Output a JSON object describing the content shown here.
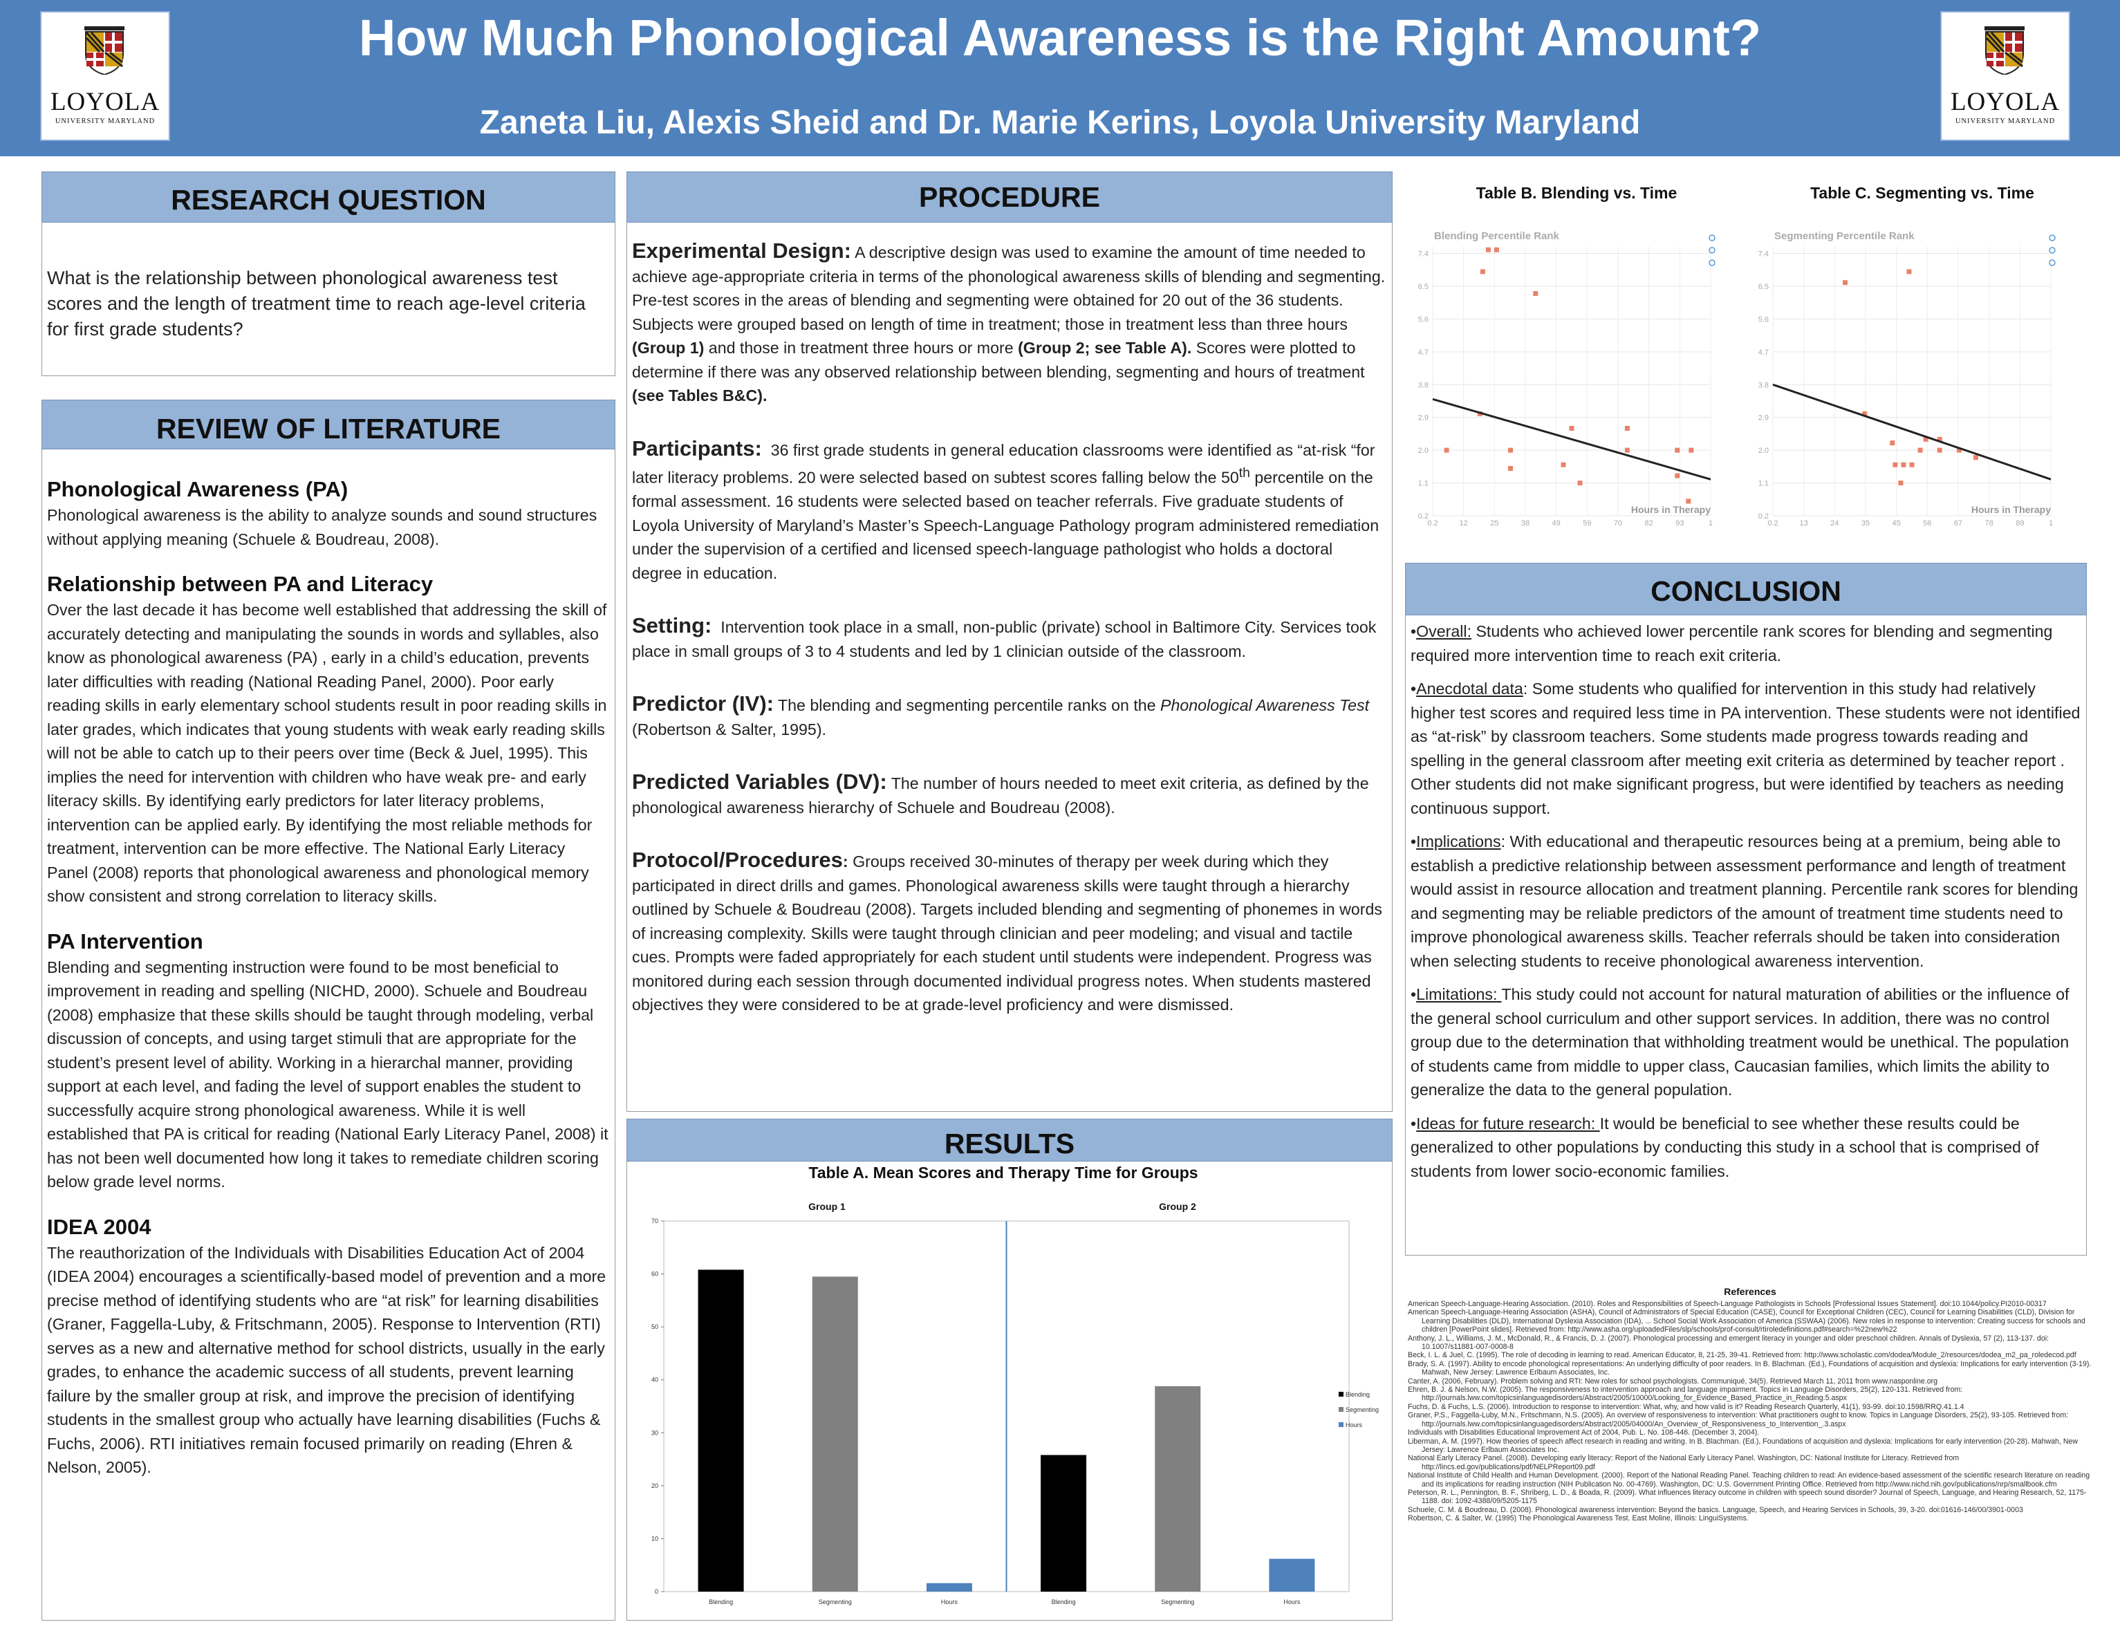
{
  "header": {
    "title": "How Much Phonological Awareness is the Right Amount?",
    "authors": "Zaneta Liu, Alexis Sheid and Dr. Marie Kerins, Loyola University Maryland",
    "logo_word": "LOYOLA",
    "logo_sub": "UNIVERSITY MARYLAND",
    "colors": {
      "header_bg": "#4f81bd",
      "section_bar": "#95b3d7"
    }
  },
  "research_question": {
    "heading": "RESEARCH QUESTION",
    "text": "What is the relationship between phonological awareness test scores and the length of treatment time to reach age-level criteria for first grade students?"
  },
  "literature": {
    "heading": "REVIEW OF LITERATURE",
    "sections": [
      {
        "title": "Phonological Awareness (PA)",
        "body": "Phonological awareness is the ability to analyze sounds and sound structures without applying meaning (Schuele & Boudreau, 2008)."
      },
      {
        "title": "Relationship between PA and Literacy",
        "body": "Over the last decade it has become well established that addressing the skill of accurately detecting and manipulating the sounds in words and syllables, also know as phonological awareness (PA) , early in a child’s education, prevents later difficulties with reading (National Reading Panel, 2000). Poor early reading skills in early elementary school students result in poor reading skills in later grades, which indicates that young students with weak early reading skills will not be able to catch up to their peers over time (Beck & Juel, 1995). This implies the need for intervention with children who have weak pre- and early literacy skills. By identifying early predictors for later literacy problems, intervention can be applied early. By identifying the most reliable methods for treatment, intervention can be more effective. The National Early Literacy Panel (2008) reports that phonological awareness and phonological memory show consistent and strong correlation to literacy skills."
      },
      {
        "title": "PA Intervention",
        "body": "Blending and segmenting instruction were found to be most beneficial to improvement in reading and spelling (NICHD, 2000). Schuele and Boudreau (2008) emphasize that these skills should be taught through modeling, verbal discussion of concepts, and using target stimuli that are appropriate for the student’s present level of ability. Working in a hierarchal manner, providing support at each level, and fading the level of support enables the student to successfully acquire strong phonological awareness. While it is well established that PA is critical for reading (National Early Literacy Panel, 2008) it has not been well documented how long it takes to remediate children scoring below grade level norms."
      },
      {
        "title": "IDEA 2004",
        "body": "The reauthorization of the Individuals with Disabilities Education Act of 2004 (IDEA 2004) encourages a scientifically-based model of prevention and a more precise method of identifying students who are “at risk” for learning disabilities (Graner, Faggella-Luby, & Fritschmann, 2005). Response to Intervention (RTI) serves as a new and alternative method for school districts, usually in the early grades, to enhance the academic success of all students, prevent learning failure by the smaller group at risk, and improve the precision of identifying students in the smallest group who actually have learning disabilities (Fuchs & Fuchs, 2006). RTI initiatives remain focused primarily on reading (Ehren & Nelson, 2005)."
      }
    ]
  },
  "procedure": {
    "heading": "PROCEDURE",
    "items": [
      {
        "title": "Experimental Design:",
        "body": "A descriptive design was used to examine the amount of time needed to achieve age-appropriate criteria in terms of the phonological awareness skills of blending and segmenting. Pre-test scores in the areas of blending and segmenting were obtained for 20 out of the 36 students. Subjects were grouped based on length of time in treatment; those in treatment less than three hours",
        "b1": "(Group 1)",
        "mid": "and those in treatment three hours or more",
        "b2": "(Group 2; see Table A).",
        "end": "Scores were plotted to determine if there was any observed relationship between blending, segmenting and hours of treatment",
        "b3": "(see Tables B&C)."
      },
      {
        "title": "Participants:",
        "body": "36 first grade students in general education classrooms were identified as “at-risk “for later literacy problems. 20 were selected based on subtest scores falling below the 50",
        "sup": "th",
        "end": "percentile on the formal assessment. 16 students were selected based on teacher referrals. Five graduate students of Loyola University of Maryland’s Master’s Speech-Language Pathology program administered remediation under the supervision of a certified and licensed speech-language pathologist who holds a doctoral degree in education."
      },
      {
        "title": "Setting:",
        "body": "Intervention took place in a small, non-public (private) school in Baltimore City. Services took place in small groups of 3 to 4 students and led by 1 clinician outside of the classroom."
      },
      {
        "title": "Predictor (IV):",
        "body": "The blending and segmenting percentile ranks on the",
        "ital": "Phonological Awareness Test",
        "end": "(Robertson & Salter, 1995)."
      },
      {
        "title": "Predicted  Variables (DV):",
        "body": "The number of hours needed to meet exit criteria, as defined by the phonological awareness hierarchy of Schuele and Boudreau (2008)."
      },
      {
        "title": "Protocol/Procedures",
        "colon": ":",
        "body": "Groups received 30-minutes of therapy per week during which they participated in direct drills and games. Phonological awareness skills were taught through a hierarchy outlined by Schuele & Boudreau (2008). Targets included blending and segmenting of phonemes in words of increasing complexity. Skills were taught through clinician and peer modeling; and visual and tactile cues. Prompts were faded appropriately for each student until students were independent. Progress was monitored during each session through documented individual progress notes. When students mastered objectives they were considered to be at grade-level proficiency and were dismissed."
      }
    ]
  },
  "results": {
    "heading": "RESULTS",
    "chart_data": {
      "type": "bar",
      "title": "Table A. Mean Scores and Therapy Time for Groups",
      "groups": [
        "Group 1",
        "Group 2"
      ],
      "categories": [
        "Blending",
        "Segmenting",
        "Hours",
        "Blending",
        "Segmenting",
        "Hours"
      ],
      "values": [
        60.8,
        59.5,
        1.6,
        25.8,
        38.8,
        6.2
      ],
      "colors": [
        "#000000",
        "#808080",
        "#4f81bd",
        "#000000",
        "#808080",
        "#4f81bd"
      ],
      "legend": [
        "Blending",
        "Segmenting",
        "Hours"
      ],
      "ylim": [
        0,
        70
      ],
      "yticks": [
        "0",
        "10",
        "20",
        "30",
        "40",
        "50",
        "60",
        "70"
      ]
    }
  },
  "scatter": {
    "chart_data": [
      {
        "type": "scatter",
        "table_title": "Table B.  Blending vs. Time",
        "title": "Blending Percentile Rank",
        "xlabel": "Hours in Therapy",
        "yticks": [
          "7.4",
          "6.5",
          "5.6",
          "4.7",
          "3.8",
          "2.9",
          "2.0",
          "1.1",
          "0.2"
        ],
        "xticks": [
          "0.2",
          "12",
          "25",
          "38",
          "49",
          "59",
          "70",
          "82",
          "93",
          "1"
        ],
        "points": [
          [
            5,
            2.0
          ],
          [
            18,
            6.9
          ],
          [
            20,
            7.5
          ],
          [
            23,
            7.5
          ],
          [
            17,
            3.0
          ],
          [
            37,
            6.3
          ],
          [
            28,
            2.0
          ],
          [
            28,
            1.5
          ],
          [
            47,
            1.6
          ],
          [
            50,
            2.6
          ],
          [
            53,
            1.1
          ],
          [
            70,
            2.6
          ],
          [
            70,
            2.0
          ],
          [
            88,
            2.0
          ],
          [
            93,
            2.0
          ],
          [
            88,
            1.3
          ],
          [
            92,
            0.6
          ]
        ],
        "trend": [
          [
            0,
            3.4
          ],
          [
            100,
            1.2
          ]
        ]
      },
      {
        "type": "scatter",
        "table_title": "Table C. Segmenting vs. Time",
        "title": "Segmenting Percentile Rank",
        "xlabel": "Hours in Therapy",
        "yticks": [
          "7.4",
          "6.5",
          "5.6",
          "4.7",
          "3.8",
          "2.9",
          "2.0",
          "1.1",
          "0.2"
        ],
        "xticks": [
          "0.2",
          "13",
          "24",
          "35",
          "45",
          "56",
          "67",
          "78",
          "89",
          "1"
        ],
        "points": [
          [
            26,
            6.6
          ],
          [
            49,
            6.9
          ],
          [
            33,
            3.0
          ],
          [
            43,
            2.2
          ],
          [
            44,
            1.6
          ],
          [
            46,
            1.1
          ],
          [
            47,
            1.6
          ],
          [
            50,
            1.6
          ],
          [
            53,
            2.0
          ],
          [
            55,
            2.3
          ],
          [
            60,
            2.0
          ],
          [
            60,
            2.3
          ],
          [
            67,
            2.0
          ],
          [
            73,
            1.8
          ]
        ],
        "trend": [
          [
            0,
            3.8
          ],
          [
            100,
            1.2
          ]
        ]
      }
    ]
  },
  "conclusion": {
    "heading": "CONCLUSION",
    "items": [
      {
        "label": "Overall:",
        "text": " Students who achieved lower percentile rank scores for blending and segmenting required more intervention time to reach exit criteria."
      },
      {
        "label": "Anecdotal data",
        "text": ": Some students who qualified for intervention in this study had relatively higher test scores and required less time in PA intervention. These students were not identified as “at-risk” by classroom teachers. Some students made progress towards reading and spelling in the general classroom after meeting exit criteria as determined by teacher report . Other students did not make significant progress, but were identified by teachers as needing continuous support."
      },
      {
        "label": "Implications",
        "text": ":  With educational and therapeutic resources being at a premium, being able to establish a predictive relationship between assessment performance and length of treatment would assist in resource allocation and treatment planning. Percentile rank scores for blending and segmenting may be reliable predictors of the amount of treatment time students need to improve phonological awareness skills. Teacher referrals should be taken into consideration when selecting students to receive phonological awareness intervention."
      },
      {
        "label": "Limitations: ",
        "text": "This study could not account for natural maturation of abilities or the influence of the general school curriculum and other support services. In addition, there was no control group due to the determination that withholding treatment would be unethical.  The population of students came from middle to upper class, Caucasian families, which limits the ability to generalize the data to the general population."
      },
      {
        "label": "Ideas for future research: ",
        "text": "It would be beneficial to see whether these results could be generalized to other populations by conducting this study in a school that is comprised of students from lower socio-economic families."
      }
    ]
  },
  "references": {
    "heading": "References",
    "items": [
      "American Speech-Language-Hearing Association. (2010). Roles and Responsibilities of Speech-Language Pathologists in Schools [Professional Issues Statement]. doi:10.1044/policy.PI2010-00317",
      "American Speech-Language-Hearing Association (ASHA), Council of Administrators of Special Education (CASE), Council for Exceptional Children (CEC), Council for Learning Disabilities (CLD), Division for Learning Disabilities (DLD), International Dyslexia Association (IDA), ... School Social Work Association of America (SSWAA) (2006). New roles in response to intervention: Creating success for schools and children [PowerPoint slides]. Retrieved from: http://www.asha.org/uploadedFiles/slp/schools/prof-consult/rtiroledefinitions.pdf#search=%22new%22",
      "Anthony, J. L., Williams, J. M., McDonald, R., & Francis, D. J. (2007). Phonological processing and emergent literacy in younger and older preschool children. Annals of Dyslexia, 57 (2), 113-137. doi: 10.1007/s11881-007-0008-8",
      "Beck, I. L. & Juel, C. (1995). The role of decoding in learning to read. American Educator, 8, 21-25, 39-41. Retrieved from: http://www.scholastic.com/dodea/Module_2/resources/dodea_m2_pa_roledecod.pdf",
      "Brady, S. A. (1997). Ability to encode phonological representations: An underlying difficulty of poor readers. In B. Blachman. (Ed.), Foundations of acquisition and dyslexia: Implications for early intervention (3-19). Mahwah, New Jersey: Lawrence Erlbaum Associates, Inc.",
      "Canter, A. (2006, February).  Problem solving and RTI: New roles for school psychologists. Communiqué, 34(5). Retrieved March 11, 2011 from www.nasponline.org",
      "Ehren, B. J. & Nelson, N.W. (2005). The responsiveness to intervention approach and language impairment. Topics in Language Disorders, 25(2), 120-131.  Retrieved from: http://journals.lww.com/topicsinlanguagedisorders/Abstract/2005/10000/Looking_for_Evidence_Based_Practice_in_Reading.5.aspx",
      "Fuchs, D. & Fuchs, L.S. (2006). Introduction to response to intervention:  What, why, and how valid is it? Reading Research Quarterly, 41(1), 93-99.  doi:10.1598/RRQ.41.1.4",
      "Graner, P.S., Faggella-Luby, M.N., Fritschmann, N.S. (2005). An overview of responsiveness to intervention: What practitioners ought to know.  Topics in Language Disorders, 25(2), 93-105. Retrieved from: http://journals.lww.com/topicsinlanguagedisorders/Abstract/2005/04000/An_Overview_of_Responsiveness_to_Intervention_.3.aspx",
      "Individuals with Disabilities Educational Improvement Act of 2004, Pub. L. No. 108-446.  (December 3, 2004).",
      "Liberman, A. M. (1997). How theories of speech affect research in reading and writing. In B. Blachman. (Ed.), Foundations of acquisition and dyslexia: Implications for early intervention (20-28). Mahwah, New Jersey: Lawrence Erlbaum Associates Inc.",
      "National Early Literacy Panel. (2008). Developing early literacy: Report of the National Early Literacy Panel. Washington, DC: National Institute for Literacy. Retrieved from http://lincs.ed.gov/publications/pdf/NELPReport09.pdf",
      "National Institute of Child Health and Human Development. (2000). Report of the National Reading Panel. Teaching children to read: An evidence-based assessment of the scientific research literature on reading and its implications for reading instruction (NIH Publication No. 00-4769).  Washington, DC: U.S. Government Printing Office. Retrieved from http://www.nichd.nih.gov/publications/nrp/smallbook.cfm",
      "Peterson, R. L., Pennington, B. F., Shriberg, L. D., & Boada, R. (2009). What influences literacy outcome in children with speech sound disorder? Journal of Speech, Language, and Hearing Research, 52, 1175-1188. doi: 1092-4388/09/5205-1175",
      "Schuele, C. M. & Boudreau, D. (2008). Phonological awareness intervention:  Beyond the basics. Language, Speech, and Hearing Services in Schools, 39, 3-20. doi:01616-146/00/3901-0003",
      "Robertson, C. & Salter, W. (1995) The Phonological Awareness Test. East Moline, Illinois: LinguiSystems."
    ]
  }
}
